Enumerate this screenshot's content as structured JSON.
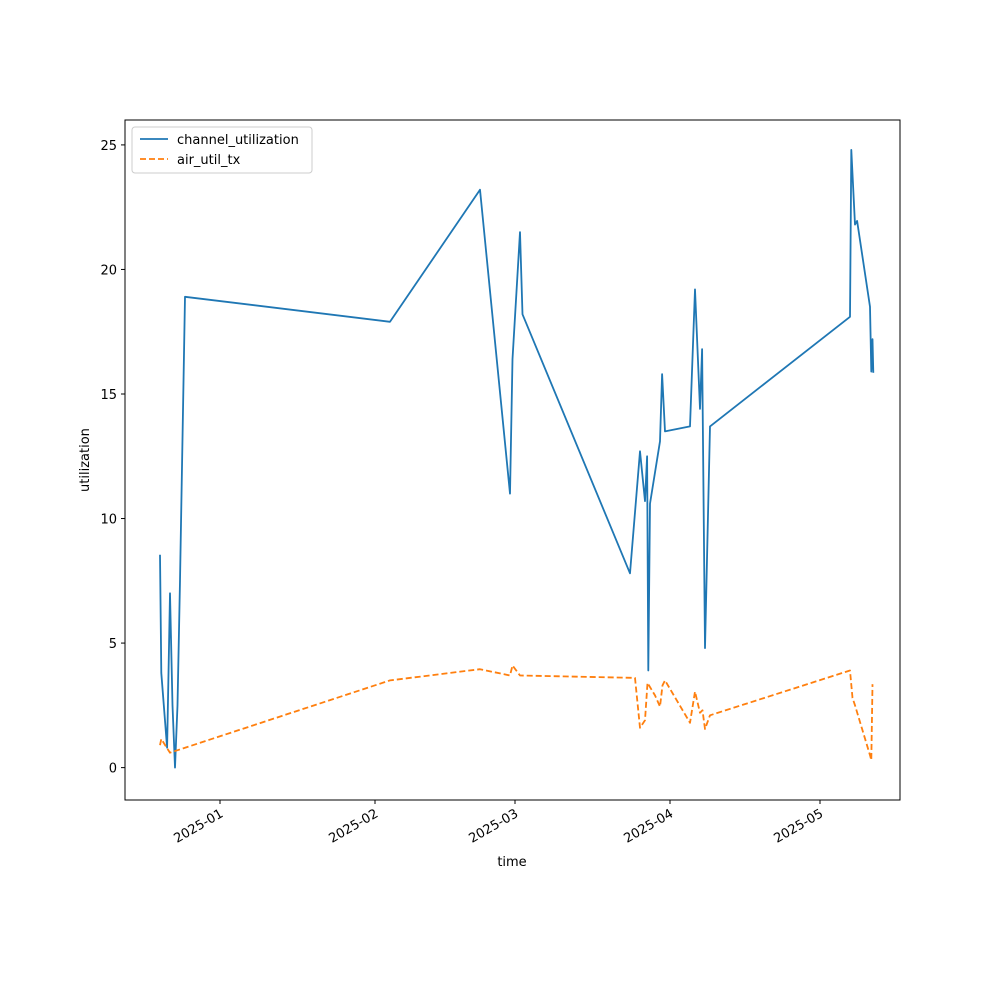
{
  "chart_data": {
    "type": "line",
    "title": "",
    "xlabel": "time",
    "ylabel": "utilization",
    "x_ticks": [
      "2025-01-01",
      "2025-02-01",
      "2025-03-01",
      "2025-04-01",
      "2025-05-01"
    ],
    "x_tick_labels": [
      "2025-01",
      "2025-02",
      "2025-03",
      "2025-04",
      "2025-05"
    ],
    "xlim": [
      "2024-12-13",
      "2025-05-17"
    ],
    "y_ticks": [
      0,
      5,
      10,
      15,
      20,
      25
    ],
    "ylim": [
      -1.3,
      26.0
    ],
    "grid": false,
    "legend_position": "top-left",
    "series": [
      {
        "name": "channel_utilization",
        "color": "#1f77b4",
        "dash": "solid",
        "points": [
          [
            "2024-12-20",
            8.55
          ],
          [
            "2024-12-20T06:00",
            3.8
          ],
          [
            "2024-12-21T10:00",
            0.8
          ],
          [
            "2024-12-22",
            7.0
          ],
          [
            "2024-12-22T12:00",
            2.5
          ],
          [
            "2024-12-23",
            0.0
          ],
          [
            "2024-12-23T12:00",
            2.5
          ],
          [
            "2024-12-24",
            7.5
          ],
          [
            "2024-12-25",
            18.9
          ],
          [
            "2025-02-04",
            17.9
          ],
          [
            "2025-02-22",
            23.2
          ],
          [
            "2025-02-28",
            11.0
          ],
          [
            "2025-02-28T12:00",
            16.4
          ],
          [
            "2025-03-02",
            21.5
          ],
          [
            "2025-03-02T12:00",
            18.2
          ],
          [
            "2025-03-24",
            7.8
          ],
          [
            "2025-03-26",
            12.7
          ],
          [
            "2025-03-27",
            10.7
          ],
          [
            "2025-03-27T10:00",
            12.5
          ],
          [
            "2025-03-27T16:00",
            3.9
          ],
          [
            "2025-03-28",
            10.6
          ],
          [
            "2025-03-30",
            13.1
          ],
          [
            "2025-03-30T10:00",
            15.8
          ],
          [
            "2025-03-31",
            13.5
          ],
          [
            "2025-04-05",
            13.7
          ],
          [
            "2025-04-06",
            19.2
          ],
          [
            "2025-04-07",
            14.4
          ],
          [
            "2025-04-07T10:00",
            16.8
          ],
          [
            "2025-04-08",
            4.8
          ],
          [
            "2025-04-09",
            13.7
          ],
          [
            "2025-05-07",
            18.1
          ],
          [
            "2025-05-07T06:00",
            24.8
          ],
          [
            "2025-05-08",
            21.8
          ],
          [
            "2025-05-08T10:00",
            21.95
          ],
          [
            "2025-05-11",
            18.5
          ],
          [
            "2025-05-11T06:00",
            15.9
          ],
          [
            "2025-05-11T12:00",
            17.2
          ],
          [
            "2025-05-11T16:00",
            15.85
          ]
        ]
      },
      {
        "name": "air_util_tx",
        "color": "#ff7f0e",
        "dash": "dashed",
        "points": [
          [
            "2024-12-20",
            0.9
          ],
          [
            "2024-12-20T06:00",
            1.15
          ],
          [
            "2024-12-21T12:00",
            0.75
          ],
          [
            "2024-12-22",
            0.6
          ],
          [
            "2025-02-04",
            3.5
          ],
          [
            "2025-02-22",
            3.95
          ],
          [
            "2025-02-28",
            3.7
          ],
          [
            "2025-02-28T12:00",
            4.1
          ],
          [
            "2025-03-02",
            3.7
          ],
          [
            "2025-03-25",
            3.6
          ],
          [
            "2025-03-26",
            1.6
          ],
          [
            "2025-03-27",
            1.9
          ],
          [
            "2025-03-27T12:00",
            3.4
          ],
          [
            "2025-03-29",
            2.9
          ],
          [
            "2025-03-30",
            2.45
          ],
          [
            "2025-03-30T12:00",
            3.3
          ],
          [
            "2025-03-31",
            3.5
          ],
          [
            "2025-04-05",
            1.8
          ],
          [
            "2025-04-06",
            3.05
          ],
          [
            "2025-04-07",
            2.2
          ],
          [
            "2025-04-07T12:00",
            2.3
          ],
          [
            "2025-04-08",
            1.55
          ],
          [
            "2025-04-09",
            2.1
          ],
          [
            "2025-05-07",
            3.9
          ],
          [
            "2025-05-07T12:00",
            2.8
          ],
          [
            "2025-05-08",
            2.5
          ],
          [
            "2025-05-11",
            0.5
          ],
          [
            "2025-05-11T06:00",
            0.3
          ],
          [
            "2025-05-11T12:00",
            3.35
          ]
        ]
      }
    ]
  }
}
